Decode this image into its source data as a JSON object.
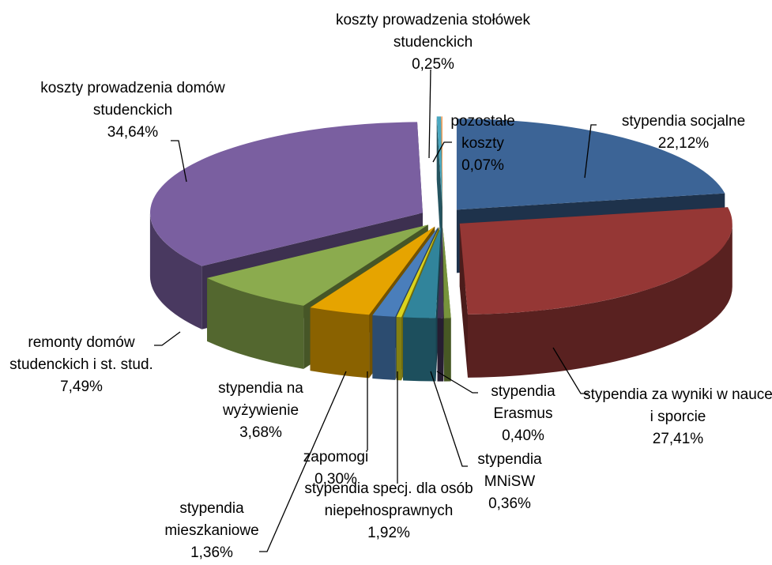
{
  "chart_data": {
    "type": "pie3d",
    "categories": [
      "stypendia socjalne",
      "stypendia za wyniki w nauce i sporcie",
      "stypendia Erasmus",
      "stypendia MNiSW",
      "stypendia specj. dla osób niepełnosprawnych",
      "zapomogi",
      "stypendia mieszkaniowe",
      "stypendia na wyżywienie",
      "remonty domów studenckich i st. stud.",
      "koszty prowadzenia domów studenckich",
      "koszty prowadzenia stołówek studenckich",
      "pozostałe koszty"
    ],
    "values": [
      22.12,
      27.41,
      0.4,
      0.36,
      1.92,
      0.3,
      1.36,
      3.68,
      7.49,
      34.64,
      0.25,
      0.07
    ],
    "value_labels": [
      "22,12%",
      "27,41%",
      "0,40%",
      "0,36%",
      "1,92%",
      "0,30%",
      "1,36%",
      "3,68%",
      "7,49%",
      "34,64%",
      "0,25%",
      "0,07%"
    ],
    "colors": [
      "#3c6496",
      "#953735",
      "#77933c",
      "#403152",
      "#31849b",
      "#dbd31c",
      "#4a7ebb",
      "#e6a400",
      "#8bab4e",
      "#7a5fa0",
      "#4aa8c0",
      "#f79646"
    ]
  }
}
